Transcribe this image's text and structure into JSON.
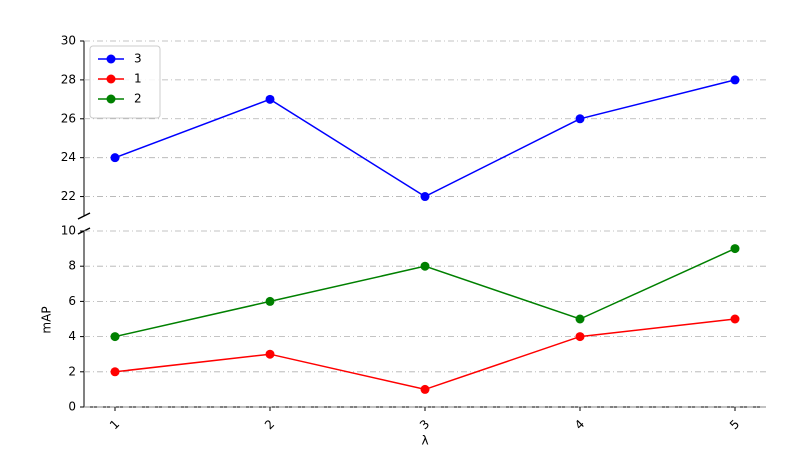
{
  "chart_data": [
    {
      "type": "line",
      "x": [
        1,
        2,
        3,
        4,
        5
      ],
      "xlim": [
        0.8,
        5.2
      ],
      "ylim": [
        21,
        30
      ],
      "yticks": [
        22,
        24,
        26,
        28,
        30
      ],
      "grid": true,
      "legend": "upper left",
      "series": [
        {
          "name": "3",
          "color": "#0000ff",
          "values": [
            24,
            27,
            22,
            26,
            28
          ]
        }
      ]
    },
    {
      "type": "line",
      "x": [
        1,
        2,
        3,
        4,
        5
      ],
      "xlim": [
        0.8,
        5.2
      ],
      "ylim": [
        0,
        10
      ],
      "yticks": [
        0,
        2,
        4,
        6,
        8,
        10
      ],
      "xticks": [
        1,
        2,
        3,
        4,
        5
      ],
      "grid": true,
      "xlabel": "λ",
      "ylabel": "mAP",
      "series": [
        {
          "name": "1",
          "color": "#ff0000",
          "values": [
            2,
            3,
            1,
            4,
            5
          ]
        },
        {
          "name": "2",
          "color": "#008000",
          "values": [
            4,
            6,
            8,
            5,
            9
          ]
        }
      ]
    }
  ]
}
